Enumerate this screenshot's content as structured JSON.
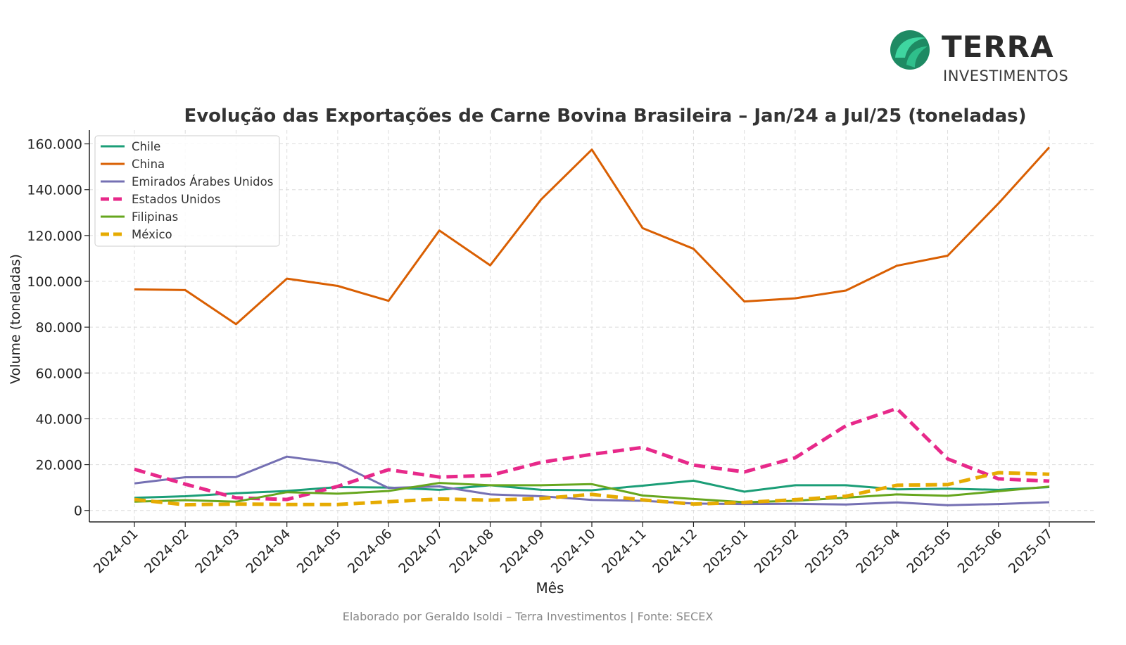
{
  "brand": {
    "name": "TERRA",
    "subtitle": "INVESTIMENTOS",
    "colors": {
      "light": "#3fd6a0",
      "dark": "#1e8a63"
    }
  },
  "footer": "Elaborado por Geraldo Isoldi – Terra Investimentos | Fonte: SECEX",
  "chart_data": {
    "type": "line",
    "title": "Evolução das Exportações de Carne Bovina Brasileira – Jan/24 a Jul/25 (toneladas)",
    "xlabel": "Mês",
    "ylabel": "Volume (toneladas)",
    "ylim": [
      -5000,
      166000
    ],
    "yticks": [
      0,
      20000,
      40000,
      60000,
      80000,
      100000,
      120000,
      140000,
      160000
    ],
    "ytick_labels": [
      "0",
      "20.000",
      "40.000",
      "60.000",
      "80.000",
      "100.000",
      "120.000",
      "140.000",
      "160.000"
    ],
    "grid": true,
    "legend_position": "top-left",
    "categories": [
      "2024-01",
      "2024-02",
      "2024-03",
      "2024-04",
      "2024-05",
      "2024-06",
      "2024-07",
      "2024-08",
      "2024-09",
      "2024-10",
      "2024-11",
      "2024-12",
      "2025-01",
      "2025-02",
      "2025-03",
      "2025-04",
      "2025-05",
      "2025-06",
      "2025-07"
    ],
    "series": [
      {
        "name": "Chile",
        "color": "#1b9e77",
        "dashed": false,
        "values": [
          5500,
          6200,
          7500,
          8500,
          10200,
          10000,
          9000,
          11000,
          9000,
          8800,
          10800,
          13000,
          8200,
          11000,
          11000,
          9200,
          9500,
          9000,
          10200
        ]
      },
      {
        "name": "China",
        "color": "#d95f02",
        "dashed": false,
        "values": [
          96500,
          96200,
          81300,
          101200,
          98000,
          91500,
          122200,
          107000,
          135700,
          157500,
          123200,
          114200,
          91200,
          92600,
          96000,
          106800,
          111200,
          134000,
          158500
        ]
      },
      {
        "name": "Emirados Árabes Unidos",
        "color": "#7570b3",
        "dashed": false,
        "values": [
          11800,
          14500,
          14600,
          23500,
          20500,
          9800,
          10500,
          7000,
          6200,
          4600,
          4200,
          3000,
          2800,
          2900,
          2600,
          3500,
          2300,
          2800,
          3600
        ]
      },
      {
        "name": "Estados Unidos",
        "color": "#e7298a",
        "dashed": true,
        "values": [
          18000,
          11500,
          5500,
          4800,
          10500,
          17800,
          14600,
          15300,
          21000,
          24500,
          27500,
          19800,
          16800,
          23000,
          37000,
          44500,
          22500,
          13800,
          12800
        ]
      },
      {
        "name": "Filipinas",
        "color": "#66a61e",
        "dashed": false,
        "values": [
          3800,
          4500,
          3800,
          8000,
          7300,
          8500,
          12000,
          11000,
          11000,
          11500,
          6500,
          5000,
          3600,
          4200,
          5600,
          7000,
          6400,
          8400,
          10400
        ]
      },
      {
        "name": "México",
        "color": "#e6ab02",
        "dashed": true,
        "values": [
          4800,
          2500,
          2800,
          2600,
          2600,
          3800,
          5000,
          4500,
          5200,
          7000,
          4600,
          2800,
          3500,
          4700,
          6200,
          11000,
          11300,
          16500,
          15800
        ]
      }
    ]
  }
}
